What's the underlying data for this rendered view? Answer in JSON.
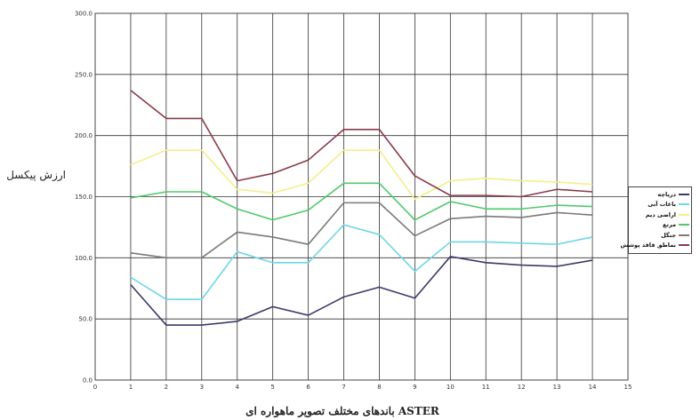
{
  "chart_data": {
    "type": "line",
    "title": "",
    "xlabel": "باندهای مختلف تصویر ماهواره ای ASTER",
    "ylabel": "ارزش پیکسل",
    "xlim": [
      0,
      15
    ],
    "ylim": [
      0,
      300
    ],
    "x_ticks": [
      "0",
      "1",
      "2",
      "3",
      "4",
      "5",
      "6",
      "7",
      "8",
      "9",
      "10",
      "11",
      "12",
      "13",
      "14",
      "15"
    ],
    "y_ticks": [
      "0.0",
      "50.0",
      "100.0",
      "150.0",
      "200.0",
      "250.0",
      "300.0"
    ],
    "grid": true,
    "legend_position": "right",
    "x": [
      1,
      2,
      3,
      4,
      5,
      6,
      7,
      8,
      9,
      10,
      11,
      12,
      13,
      14
    ],
    "series": [
      {
        "name": "دریاچه",
        "color": "#3a3a6a",
        "values": [
          78,
          45,
          45,
          48,
          60,
          53,
          68,
          76,
          67,
          101,
          96,
          94,
          93,
          98
        ]
      },
      {
        "name": "باغات آبی",
        "color": "#6fd6e6",
        "values": [
          84,
          66,
          66,
          105,
          96,
          96,
          127,
          119,
          89,
          113,
          113,
          112,
          111,
          117
        ]
      },
      {
        "name": "اراضی دیم",
        "color": "#f2ef8a",
        "values": [
          176,
          188,
          188,
          156,
          153,
          161,
          188,
          188,
          148,
          163,
          165,
          163,
          162,
          160
        ]
      },
      {
        "name": "مرتع",
        "color": "#4fc96b",
        "values": [
          149,
          154,
          154,
          140,
          131,
          139,
          161,
          161,
          131,
          146,
          140,
          140,
          143,
          142
        ]
      },
      {
        "name": "جنگل",
        "color": "#7a7a7a",
        "values": [
          104,
          100,
          100,
          121,
          117,
          111,
          145,
          145,
          118,
          132,
          134,
          133,
          137,
          135
        ]
      },
      {
        "name": "نماطق فاقد پوشش",
        "color": "#8a3a4a",
        "values": [
          237,
          214,
          214,
          163,
          169,
          180,
          205,
          205,
          167,
          151,
          151,
          150,
          156,
          154
        ]
      }
    ]
  }
}
